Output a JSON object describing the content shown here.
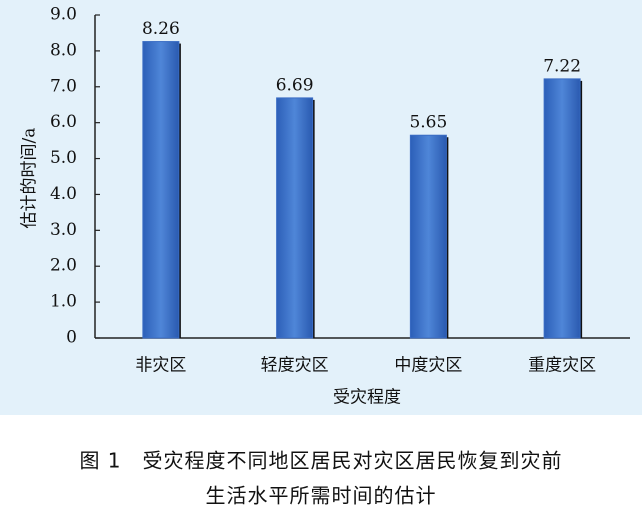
{
  "chart_data": {
    "type": "bar",
    "categories": [
      "非灾区",
      "轻度灾区",
      "中度灾区",
      "重度灾区"
    ],
    "values": [
      8.26,
      6.69,
      5.65,
      7.22
    ],
    "color": "#3a6cc4",
    "ylim": [
      0,
      9
    ],
    "yticks": [
      0,
      {
        "value": 1,
        "label": "1.0"
      },
      {
        "value": 2,
        "label": "2.0"
      },
      {
        "value": 3,
        "label": "3.0"
      },
      {
        "value": 4,
        "label": "4.0"
      },
      {
        "value": 5,
        "label": "5.0"
      },
      {
        "value": 6,
        "label": "6.0"
      },
      {
        "value": 7,
        "label": "7.0"
      },
      {
        "value": 8,
        "label": "8.0"
      },
      {
        "value": 9,
        "label": "9.0"
      }
    ],
    "xlabel": "受灾程度",
    "ylabel": "估计的时间/a",
    "caption": [
      "图 1　受灾程度不同地区居民对灾区居民恢复到灾前",
      "生活水平所需时间的估计"
    ]
  }
}
